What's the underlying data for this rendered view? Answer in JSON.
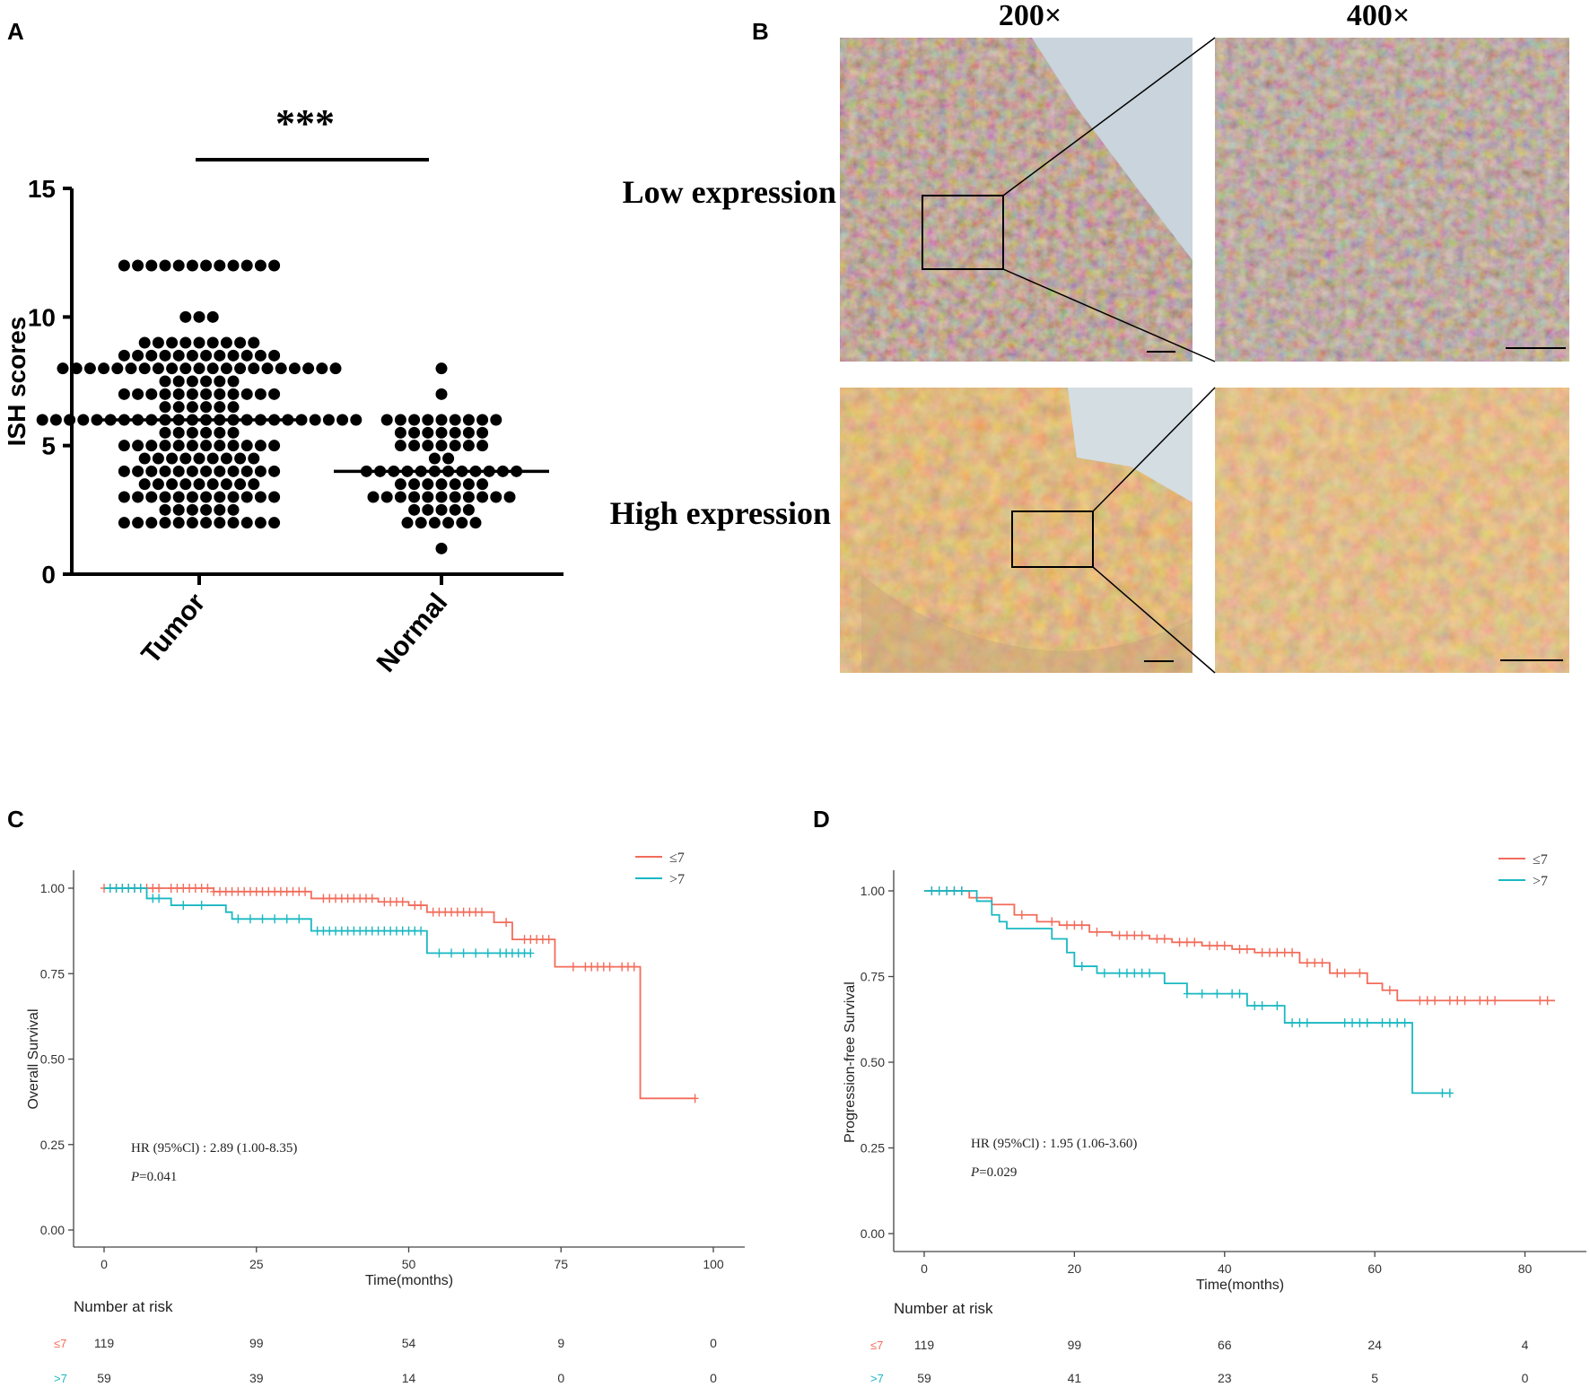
{
  "panels": {
    "A": {
      "letter": "A"
    },
    "B": {
      "letter": "B"
    },
    "C": {
      "letter": "C"
    },
    "D": {
      "letter": "D"
    }
  },
  "chart_data": [
    {
      "panel": "A",
      "type": "scatter",
      "subtype": "dot-strip",
      "ylabel": "ISH scores",
      "ylim": [
        0,
        15
      ],
      "yticks": [
        "0",
        "5",
        "10",
        "15"
      ],
      "categories": [
        "Tumor",
        "Normal"
      ],
      "significance": "***",
      "groups": [
        {
          "name": "Tumor",
          "mean": 6,
          "levels": [
            {
              "y": 12,
              "count": 12
            },
            {
              "y": 10,
              "count": 3
            },
            {
              "y": 9,
              "count": 9
            },
            {
              "y": 8.5,
              "count": 12
            },
            {
              "y": 8,
              "count": 21
            },
            {
              "y": 7.5,
              "count": 6
            },
            {
              "y": 7,
              "count": 12
            },
            {
              "y": 6.5,
              "count": 6
            },
            {
              "y": 6,
              "count": 24
            },
            {
              "y": 5.5,
              "count": 6
            },
            {
              "y": 5,
              "count": 12
            },
            {
              "y": 4.5,
              "count": 9
            },
            {
              "y": 4,
              "count": 12
            },
            {
              "y": 3.5,
              "count": 9
            },
            {
              "y": 3,
              "count": 12
            },
            {
              "y": 2.5,
              "count": 6
            },
            {
              "y": 2,
              "count": 12
            }
          ]
        },
        {
          "name": "Normal",
          "mean": 4,
          "levels": [
            {
              "y": 8,
              "count": 1
            },
            {
              "y": 7,
              "count": 1
            },
            {
              "y": 6,
              "count": 9
            },
            {
              "y": 5.5,
              "count": 7
            },
            {
              "y": 5,
              "count": 7
            },
            {
              "y": 4.5,
              "count": 2
            },
            {
              "y": 4,
              "count": 12
            },
            {
              "y": 3.5,
              "count": 7
            },
            {
              "y": 3,
              "count": 11
            },
            {
              "y": 2.5,
              "count": 5
            },
            {
              "y": 2,
              "count": 6
            },
            {
              "y": 1,
              "count": 1
            }
          ]
        }
      ]
    },
    {
      "panel": "B",
      "type": "image-grid",
      "column_labels": [
        "200×",
        "400×"
      ],
      "row_labels": [
        "Low expression",
        "High expression"
      ]
    },
    {
      "panel": "C",
      "type": "line",
      "subtype": "kaplan-meier",
      "xlabel": "Time(months)",
      "ylabel": "Overall Survival",
      "xlim": [
        0,
        100
      ],
      "ylim": [
        0,
        1
      ],
      "xticks": [
        "0",
        "25",
        "50",
        "75",
        "100"
      ],
      "yticks": [
        "0.00",
        "0.25",
        "0.50",
        "0.75",
        "1.00"
      ],
      "colors": [
        "#f26c5a",
        "#1ab8c2"
      ],
      "hr_text": "HR (95%Cl) :  2.89 (1.00-8.35)",
      "p_text": "=0.041",
      "p_label": "P",
      "legend_position": "top-right",
      "series": [
        {
          "name": "≤7",
          "steps": [
            [
              0,
              1.0
            ],
            [
              18,
              0.99
            ],
            [
              28,
              0.99
            ],
            [
              34,
              0.97
            ],
            [
              45,
              0.96
            ],
            [
              50,
              0.95
            ],
            [
              53,
              0.93
            ],
            [
              64,
              0.9
            ],
            [
              67,
              0.85
            ],
            [
              74,
              0.77
            ],
            [
              88,
              0.77
            ],
            [
              88,
              0.385
            ],
            [
              97,
              0.385
            ]
          ],
          "censors": [
            0,
            1,
            2,
            3,
            4,
            5,
            6,
            7,
            8,
            9,
            11,
            12,
            13,
            14,
            15,
            16,
            17,
            18,
            19,
            20,
            21,
            22,
            23,
            24,
            25,
            26,
            27,
            28,
            29,
            30,
            31,
            32,
            33,
            36,
            37,
            38,
            39,
            40,
            41,
            42,
            43,
            44,
            46,
            47,
            48,
            49,
            51,
            52,
            54,
            55,
            56,
            57,
            58,
            59,
            60,
            61,
            62,
            66,
            69,
            70,
            71,
            72,
            73,
            77,
            79,
            80,
            81,
            82,
            83,
            85,
            86,
            87,
            97
          ]
        },
        {
          "name": ">7",
          "steps": [
            [
              0,
              1.0
            ],
            [
              7,
              0.97
            ],
            [
              11,
              0.95
            ],
            [
              20,
              0.93
            ],
            [
              21,
              0.91
            ],
            [
              34,
              0.875
            ],
            [
              53,
              0.81
            ],
            [
              70,
              0.81
            ]
          ],
          "censors": [
            1,
            2,
            3,
            4,
            5,
            6,
            8,
            9,
            13,
            16,
            22,
            24,
            26,
            28,
            30,
            32,
            35,
            36,
            37,
            38,
            39,
            40,
            41,
            42,
            43,
            44,
            45,
            46,
            47,
            48,
            49,
            50,
            51,
            52,
            55,
            57,
            59,
            61,
            63,
            65,
            66,
            67,
            68,
            69,
            70
          ]
        }
      ],
      "risk_table": {
        "title": "Number at risk",
        "times": [
          0,
          25,
          50,
          75,
          100
        ],
        "rows": [
          {
            "label": "≤7",
            "counts": [
              "119",
              "99",
              "54",
              "9",
              "0"
            ]
          },
          {
            "label": ">7",
            "counts": [
              "59",
              "39",
              "14",
              "0",
              "0"
            ]
          }
        ]
      }
    },
    {
      "panel": "D",
      "type": "line",
      "subtype": "kaplan-meier",
      "xlabel": "Time(months)",
      "ylabel": "Progression-free Survival",
      "xlim": [
        0,
        84
      ],
      "ylim": [
        0,
        1
      ],
      "xticks": [
        "0",
        "20",
        "40",
        "60",
        "80"
      ],
      "yticks": [
        "0.00",
        "0.25",
        "0.50",
        "0.75",
        "1.00"
      ],
      "colors": [
        "#f26c5a",
        "#1ab8c2"
      ],
      "hr_text": "HR (95%Cl) : 1.95 (1.06-3.60)",
      "p_text": "=0.029",
      "p_label": "P",
      "legend_position": "top-right",
      "series": [
        {
          "name": "≤7",
          "steps": [
            [
              0,
              1.0
            ],
            [
              6,
              0.98
            ],
            [
              9,
              0.96
            ],
            [
              12,
              0.93
            ],
            [
              15,
              0.91
            ],
            [
              18,
              0.9
            ],
            [
              22,
              0.88
            ],
            [
              25,
              0.87
            ],
            [
              30,
              0.86
            ],
            [
              33,
              0.85
            ],
            [
              37,
              0.84
            ],
            [
              41,
              0.83
            ],
            [
              44,
              0.82
            ],
            [
              50,
              0.79
            ],
            [
              54,
              0.76
            ],
            [
              59,
              0.73
            ],
            [
              61,
              0.71
            ],
            [
              63,
              0.68
            ],
            [
              84,
              0.68
            ]
          ],
          "censors": [
            1,
            2,
            3,
            4,
            5,
            13,
            17,
            19,
            20,
            21,
            23,
            26,
            27,
            28,
            29,
            31,
            32,
            34,
            35,
            36,
            38,
            39,
            40,
            42,
            43,
            45,
            46,
            47,
            48,
            49,
            51,
            52,
            53,
            55,
            56,
            58,
            62,
            66,
            67,
            68,
            70,
            71,
            72,
            74,
            75,
            76,
            82,
            83
          ]
        },
        {
          "name": ">7",
          "steps": [
            [
              0,
              1.0
            ],
            [
              7,
              0.97
            ],
            [
              9,
              0.93
            ],
            [
              10,
              0.91
            ],
            [
              11,
              0.89
            ],
            [
              17,
              0.86
            ],
            [
              19,
              0.82
            ],
            [
              20,
              0.78
            ],
            [
              23,
              0.76
            ],
            [
              32,
              0.73
            ],
            [
              35,
              0.7
            ],
            [
              43,
              0.665
            ],
            [
              48,
              0.615
            ],
            [
              65,
              0.615
            ],
            [
              65,
              0.41
            ],
            [
              70,
              0.41
            ]
          ],
          "censors": [
            1,
            2,
            3,
            4,
            5,
            21,
            24,
            26,
            27,
            28,
            29,
            30,
            35,
            37,
            39,
            41,
            42,
            44,
            45,
            47,
            49,
            50,
            51,
            56,
            57,
            58,
            59,
            61,
            62,
            63,
            64,
            69,
            70
          ]
        }
      ],
      "risk_table": {
        "title": "Number at risk",
        "times": [
          0,
          20,
          40,
          60,
          80
        ],
        "rows": [
          {
            "label": "≤7",
            "counts": [
              "119",
              "99",
              "66",
              "24",
              "4"
            ]
          },
          {
            "label": ">7",
            "counts": [
              "59",
              "41",
              "23",
              "5",
              "0"
            ]
          }
        ]
      }
    }
  ]
}
